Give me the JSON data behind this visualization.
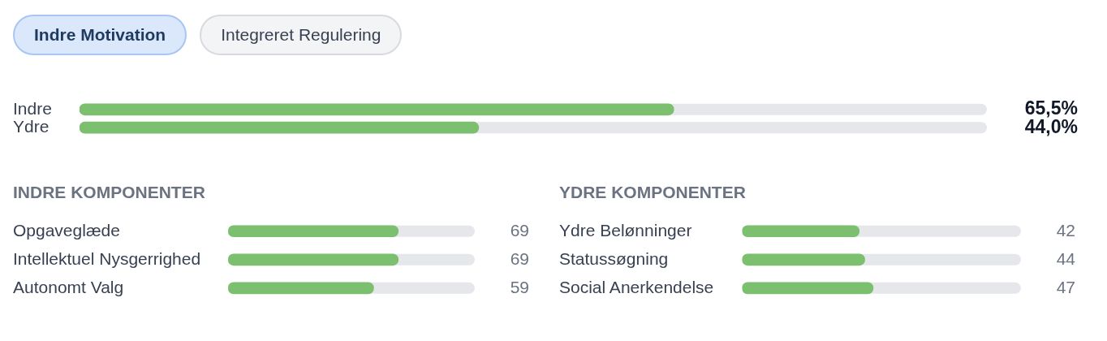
{
  "chart_data": [
    {
      "type": "bar",
      "orientation": "horizontal",
      "annotations": [
        "Indre Motivation",
        "Integreret Regulering"
      ],
      "categories": [
        "Indre",
        "Ydre"
      ],
      "values": [
        65.5,
        44.0
      ],
      "color": "#7bbf6f",
      "value_labels": [
        "65,5%",
        "44,0%"
      ],
      "xlim": [
        0,
        100
      ],
      "tick_labels": "y"
    },
    {
      "type": "bar",
      "orientation": "horizontal",
      "title": "INDRE KOMPONENTER",
      "categories": [
        "Opgaveglæde",
        "Intellektuel Nysgerrighed",
        "Autonomt Valg"
      ],
      "values": [
        69,
        69,
        59
      ],
      "color": "#7bbf6f",
      "value_labels": [
        "69",
        "69",
        "59"
      ],
      "xlim": [
        0,
        100
      ],
      "tick_labels": "y"
    },
    {
      "type": "bar",
      "orientation": "horizontal",
      "title": "YDRE KOMPONENTER",
      "categories": [
        "Ydre Belønninger",
        "Statussøgning",
        "Social Anerkendelse"
      ],
      "values": [
        42,
        44,
        47
      ],
      "color": "#7bbf6f",
      "value_labels": [
        "42",
        "44",
        "47"
      ],
      "xlim": [
        0,
        100
      ],
      "tick_labels": "y"
    }
  ]
}
